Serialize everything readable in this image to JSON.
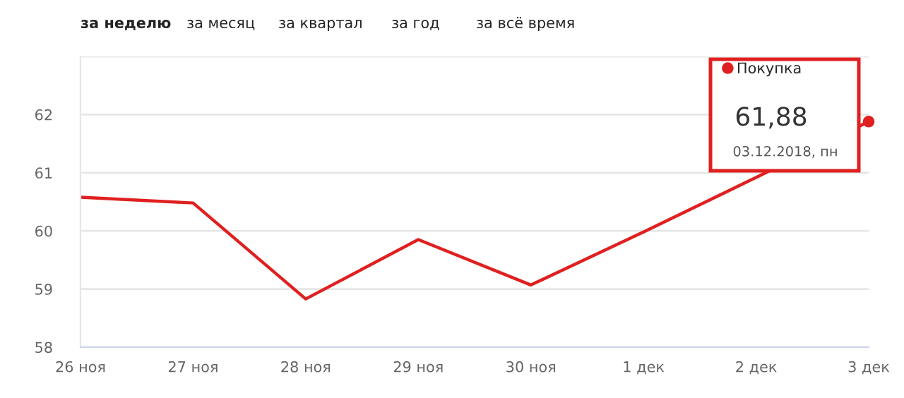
{
  "chart_data": {
    "type": "line",
    "categories": [
      "26 ноя",
      "27 ноя",
      "28 ноя",
      "29 ноя",
      "30 ноя",
      "1 дек",
      "2 дек",
      "3 дек"
    ],
    "series": [
      {
        "name": "Покупка",
        "color": "#e02020",
        "values": [
          60.58,
          60.48,
          58.83,
          59.85,
          59.07,
          59.98,
          60.92,
          61.88
        ]
      }
    ],
    "ylim": [
      58,
      63
    ],
    "yticks": [
      58,
      59,
      60,
      61,
      62,
      {
        "value": 63,
        "label": null
      }
    ],
    "grid": "y",
    "legend": "top right",
    "marker": "none",
    "line_style": "solid",
    "annotations": [
      "за неделю",
      "за месяц",
      "за квартал",
      "за год",
      "за всё время",
      "61,88",
      "03.12.2018, пн"
    ]
  }
}
